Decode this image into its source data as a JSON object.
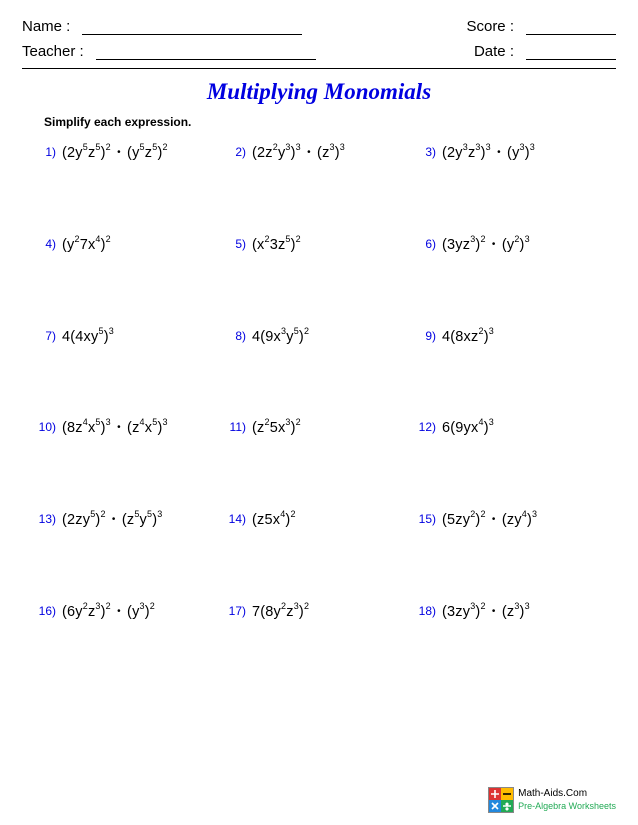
{
  "header": {
    "name_label": "Name :",
    "score_label": "Score :",
    "teacher_label": "Teacher :",
    "date_label": "Date :",
    "name_line_width": 220,
    "score_line_width": 90,
    "teacher_line_width": 220,
    "date_line_width": 90
  },
  "title": "Multiplying Monomials",
  "title_color": "#0000e0",
  "instruction": "Simplify each expression.",
  "number_color": "#0000e0",
  "text_color": "#000000",
  "background_color": "#ffffff",
  "font_size_title": 23,
  "font_size_expr": 14.5,
  "font_size_number": 12,
  "row_spacing": 74,
  "columns": 3,
  "problems": [
    {
      "n": "1)",
      "tokens": [
        "(2y",
        [
          "sup",
          "5"
        ],
        "z",
        [
          "sup",
          "5"
        ],
        ")",
        [
          "sup",
          "2"
        ],
        " ",
        [
          "dot",
          "•"
        ],
        " (y",
        [
          "sup",
          "5"
        ],
        "z",
        [
          "sup",
          "5"
        ],
        ")",
        [
          "sup",
          "2"
        ]
      ]
    },
    {
      "n": "2)",
      "tokens": [
        "(2z",
        [
          "sup",
          "2"
        ],
        "y",
        [
          "sup",
          "3"
        ],
        ")",
        [
          "sup",
          "3"
        ],
        " ",
        [
          "dot",
          "•"
        ],
        " (z",
        [
          "sup",
          "3"
        ],
        ")",
        [
          "sup",
          "3"
        ]
      ]
    },
    {
      "n": "3)",
      "tokens": [
        "(2y",
        [
          "sup",
          "3"
        ],
        "z",
        [
          "sup",
          "3"
        ],
        ")",
        [
          "sup",
          "3"
        ],
        " ",
        [
          "dot",
          "•"
        ],
        " (y",
        [
          "sup",
          "3"
        ],
        ")",
        [
          "sup",
          "3"
        ]
      ]
    },
    {
      "n": "4)",
      "tokens": [
        "(y",
        [
          "sup",
          "2"
        ],
        "7x",
        [
          "sup",
          "4"
        ],
        ")",
        [
          "sup",
          "2"
        ]
      ]
    },
    {
      "n": "5)",
      "tokens": [
        "(x",
        [
          "sup",
          "2"
        ],
        "3z",
        [
          "sup",
          "5"
        ],
        ")",
        [
          "sup",
          "2"
        ]
      ]
    },
    {
      "n": "6)",
      "tokens": [
        "(3yz",
        [
          "sup",
          "3"
        ],
        ")",
        [
          "sup",
          "2"
        ],
        " ",
        [
          "dot",
          "•"
        ],
        " (y",
        [
          "sup",
          "2"
        ],
        ")",
        [
          "sup",
          "3"
        ]
      ]
    },
    {
      "n": "7)",
      "tokens": [
        "4(4xy",
        [
          "sup",
          "5"
        ],
        ")",
        [
          "sup",
          "3"
        ]
      ]
    },
    {
      "n": "8)",
      "tokens": [
        "4(9x",
        [
          "sup",
          "3"
        ],
        "y",
        [
          "sup",
          "5"
        ],
        ")",
        [
          "sup",
          "2"
        ]
      ]
    },
    {
      "n": "9)",
      "tokens": [
        "4(8xz",
        [
          "sup",
          "2"
        ],
        ")",
        [
          "sup",
          "3"
        ]
      ]
    },
    {
      "n": "10)",
      "tokens": [
        "(8z",
        [
          "sup",
          "4"
        ],
        "x",
        [
          "sup",
          "5"
        ],
        ")",
        [
          "sup",
          "3"
        ],
        " ",
        [
          "dot",
          "•"
        ],
        " (z",
        [
          "sup",
          "4"
        ],
        "x",
        [
          "sup",
          "5"
        ],
        ")",
        [
          "sup",
          "3"
        ]
      ]
    },
    {
      "n": "11)",
      "tokens": [
        "(z",
        [
          "sup",
          "2"
        ],
        "5x",
        [
          "sup",
          "3"
        ],
        ")",
        [
          "sup",
          "2"
        ]
      ]
    },
    {
      "n": "12)",
      "tokens": [
        "6(9yx",
        [
          "sup",
          "4"
        ],
        ")",
        [
          "sup",
          "3"
        ]
      ]
    },
    {
      "n": "13)",
      "tokens": [
        "(2zy",
        [
          "sup",
          "5"
        ],
        ")",
        [
          "sup",
          "2"
        ],
        " ",
        [
          "dot",
          "•"
        ],
        " (z",
        [
          "sup",
          "5"
        ],
        "y",
        [
          "sup",
          "5"
        ],
        ")",
        [
          "sup",
          "3"
        ]
      ]
    },
    {
      "n": "14)",
      "tokens": [
        "(z5x",
        [
          "sup",
          "4"
        ],
        ")",
        [
          "sup",
          "2"
        ]
      ]
    },
    {
      "n": "15)",
      "tokens": [
        "(5zy",
        [
          "sup",
          "2"
        ],
        ")",
        [
          "sup",
          "2"
        ],
        " ",
        [
          "dot",
          "•"
        ],
        " (zy",
        [
          "sup",
          "4"
        ],
        ")",
        [
          "sup",
          "3"
        ]
      ]
    },
    {
      "n": "16)",
      "tokens": [
        "(6y",
        [
          "sup",
          "2"
        ],
        "z",
        [
          "sup",
          "3"
        ],
        ")",
        [
          "sup",
          "2"
        ],
        " ",
        [
          "dot",
          "•"
        ],
        " (y",
        [
          "sup",
          "3"
        ],
        ")",
        [
          "sup",
          "2"
        ]
      ]
    },
    {
      "n": "17)",
      "tokens": [
        "7(8y",
        [
          "sup",
          "2"
        ],
        "z",
        [
          "sup",
          "3"
        ],
        ")",
        [
          "sup",
          "2"
        ]
      ]
    },
    {
      "n": "18)",
      "tokens": [
        "(3zy",
        [
          "sup",
          "3"
        ],
        ")",
        [
          "sup",
          "2"
        ],
        " ",
        [
          "dot",
          "•"
        ],
        " (z",
        [
          "sup",
          "3"
        ],
        ")",
        [
          "sup",
          "3"
        ]
      ]
    }
  ],
  "footer": {
    "line1": "Math-Aids.Com",
    "line2": "Pre-Algebra Worksheets",
    "icon_colors": {
      "plus": "#d33",
      "minus": "#fb0",
      "times": "#28d",
      "div": "#2a5",
      "border": "#888"
    }
  }
}
